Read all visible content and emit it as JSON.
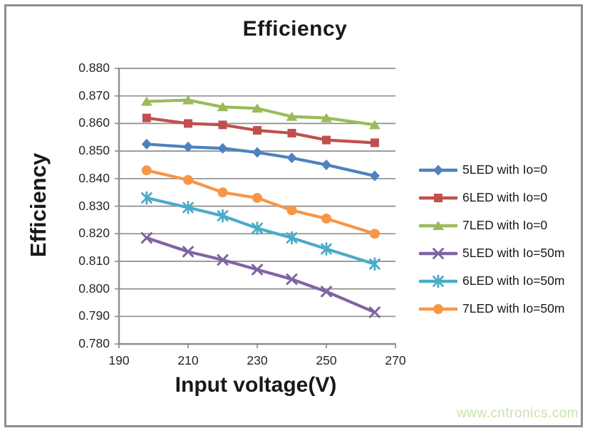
{
  "watermark": "www.cntronics.com",
  "colors": {
    "watermark": "#C9E3AE",
    "axis_text": "#262626",
    "title_text": "#191919",
    "frame_border": "#8E8E8E"
  },
  "chart_data": {
    "type": "line",
    "title": "Efficiency",
    "xlabel": "Input voltage(V)",
    "ylabel": "Efficiency",
    "xlim": [
      190,
      270
    ],
    "ylim": [
      0.78,
      0.88
    ],
    "x_tick_labels": [
      "190",
      "210",
      "230",
      "250",
      "270"
    ],
    "y_tick_labels": [
      "0.880",
      "0.870",
      "0.860",
      "0.850",
      "0.840",
      "0.830",
      "0.820",
      "0.810",
      "0.800",
      "0.790",
      "0.780"
    ],
    "grid": "horizontal",
    "grid_color": "#8E8E8E",
    "legend_position": "right",
    "x": [
      198,
      210,
      220,
      230,
      240,
      250,
      264
    ],
    "series": [
      {
        "name": "5LED with Io=0",
        "color": "#4F81BD",
        "marker": "diamond",
        "values": [
          0.8525,
          0.8515,
          0.851,
          0.8495,
          0.8475,
          0.845,
          0.841
        ]
      },
      {
        "name": "6LED with Io=0",
        "color": "#C0504D",
        "marker": "square",
        "values": [
          0.862,
          0.86,
          0.8595,
          0.8575,
          0.8565,
          0.854,
          0.853
        ]
      },
      {
        "name": "7LED with Io=0",
        "color": "#9BBB59",
        "marker": "triangle",
        "values": [
          0.868,
          0.8685,
          0.866,
          0.8655,
          0.8625,
          0.862,
          0.8595
        ]
      },
      {
        "name": "5LED with Io=50m",
        "color": "#8064A2",
        "marker": "x",
        "values": [
          0.8185,
          0.8135,
          0.8105,
          0.807,
          0.8035,
          0.799,
          0.7915
        ]
      },
      {
        "name": "6LED with Io=50m",
        "color": "#4BACC6",
        "marker": "star",
        "values": [
          0.833,
          0.8295,
          0.8265,
          0.822,
          0.8185,
          0.8145,
          0.809
        ]
      },
      {
        "name": "7LED with Io=50m",
        "color": "#F79646",
        "marker": "circle",
        "values": [
          0.843,
          0.8395,
          0.835,
          0.833,
          0.8285,
          0.8255,
          0.82
        ]
      }
    ]
  }
}
